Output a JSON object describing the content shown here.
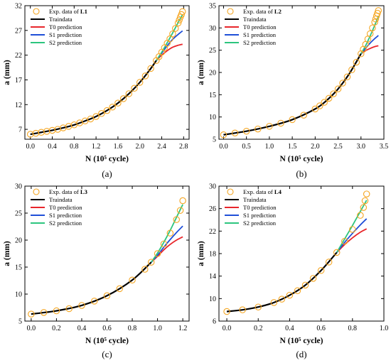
{
  "chart_data": [
    {
      "type": "line",
      "caption": "(a)",
      "xlabel": "N (10⁵ cycle)",
      "ylabel": "a (mm)",
      "xlim": [
        -0.1,
        2.9
      ],
      "ylim": [
        5,
        32
      ],
      "xticks": [
        0.0,
        0.4,
        0.8,
        1.2,
        1.6,
        2.0,
        2.4,
        2.8
      ],
      "xtick_labels": [
        "0.0",
        "0.4",
        "0.8",
        "1.2",
        "1.6",
        "2.0",
        "2.4",
        "2.8"
      ],
      "yticks": [
        7,
        12,
        17,
        22,
        27,
        32
      ],
      "ytick_labels": [
        "7",
        "12",
        "17",
        "22",
        "27",
        "32"
      ],
      "legend": {
        "position": "top-left",
        "entries": [
          {
            "label": "Exp. data of ",
            "label_bold": "L1",
            "kind": "marker",
            "color": "#F5A623"
          },
          {
            "label": "Traindata",
            "kind": "line",
            "color": "#000000"
          },
          {
            "label": "T0 prediction",
            "kind": "line",
            "color": "#E8262B"
          },
          {
            "label": "S1 prediction",
            "kind": "line",
            "color": "#1F4FD8"
          },
          {
            "label": "S2 prediction",
            "kind": "line",
            "color": "#2CC57E"
          }
        ]
      },
      "exp_data": {
        "x": [
          0.0,
          0.1,
          0.2,
          0.3,
          0.4,
          0.5,
          0.6,
          0.7,
          0.8,
          0.9,
          1.0,
          1.1,
          1.2,
          1.3,
          1.4,
          1.5,
          1.6,
          1.7,
          1.8,
          1.9,
          2.0,
          2.1,
          2.2,
          2.3,
          2.35,
          2.4,
          2.45,
          2.5,
          2.55,
          2.6,
          2.65,
          2.7,
          2.72,
          2.74,
          2.76,
          2.78
        ],
        "y": [
          6.0,
          6.2,
          6.4,
          6.6,
          6.8,
          7.0,
          7.3,
          7.6,
          7.9,
          8.3,
          8.7,
          9.1,
          9.6,
          10.2,
          10.8,
          11.5,
          12.3,
          13.2,
          14.2,
          15.3,
          16.5,
          17.8,
          19.3,
          20.9,
          21.7,
          22.6,
          23.5,
          24.4,
          25.3,
          26.3,
          27.4,
          28.5,
          29.1,
          29.7,
          30.2,
          30.8
        ]
      },
      "train_data": {
        "x": [
          0.0,
          0.2,
          0.4,
          0.6,
          0.8,
          1.0,
          1.2,
          1.4,
          1.6,
          1.8,
          2.0,
          2.2,
          2.3
        ],
        "y": [
          6.0,
          6.4,
          6.8,
          7.3,
          7.9,
          8.7,
          9.6,
          10.8,
          12.3,
          14.2,
          16.5,
          19.3,
          20.9
        ]
      },
      "predictions": {
        "x": [
          2.3,
          2.4,
          2.5,
          2.6,
          2.7,
          2.78
        ],
        "T0": [
          20.9,
          22.0,
          22.9,
          23.6,
          24.0,
          24.2
        ],
        "S1": [
          20.9,
          22.4,
          23.9,
          25.2,
          26.2,
          26.9
        ],
        "S2": [
          20.9,
          22.6,
          24.5,
          26.5,
          28.6,
          30.2
        ]
      }
    },
    {
      "type": "line",
      "caption": "(b)",
      "xlabel": "N (10⁵ cycle)",
      "ylabel": "a (mm)",
      "xlim": [
        -0.1,
        3.5
      ],
      "ylim": [
        5,
        35
      ],
      "xticks": [
        0.0,
        0.5,
        1.0,
        1.5,
        2.0,
        2.5,
        3.0,
        3.5
      ],
      "xtick_labels": [
        "0.0",
        "0.5",
        "1.0",
        "1.5",
        "2.0",
        "2.5",
        "3.0",
        "3.5"
      ],
      "yticks": [
        5,
        10,
        15,
        20,
        25,
        30,
        35
      ],
      "ytick_labels": [
        "5",
        "10",
        "15",
        "20",
        "25",
        "30",
        "35"
      ],
      "legend": {
        "position": "top-left",
        "entries": [
          {
            "label": "Exp. data of ",
            "label_bold": "L2",
            "kind": "marker",
            "color": "#F5A623"
          },
          {
            "label": "Traindata",
            "kind": "line",
            "color": "#000000"
          },
          {
            "label": "T0 prediction",
            "kind": "line",
            "color": "#E8262B"
          },
          {
            "label": "S1 prediction",
            "kind": "line",
            "color": "#1F4FD8"
          },
          {
            "label": "S2 prediction",
            "kind": "line",
            "color": "#2CC57E"
          }
        ]
      },
      "exp_data": {
        "x": [
          0.0,
          0.25,
          0.5,
          0.75,
          1.0,
          1.25,
          1.5,
          1.75,
          2.0,
          2.1,
          2.2,
          2.3,
          2.4,
          2.5,
          2.6,
          2.7,
          2.8,
          2.9,
          3.0,
          3.05,
          3.1,
          3.15,
          3.2,
          3.25,
          3.3,
          3.32,
          3.34,
          3.36,
          3.38
        ],
        "y": [
          6.0,
          6.4,
          6.8,
          7.3,
          7.9,
          8.6,
          9.4,
          10.4,
          11.8,
          12.5,
          13.3,
          14.2,
          15.2,
          16.3,
          17.6,
          19.0,
          20.6,
          22.3,
          24.2,
          25.2,
          26.3,
          27.5,
          28.7,
          30.0,
          31.3,
          32.0,
          32.7,
          33.3,
          33.9
        ]
      },
      "train_data": {
        "x": [
          0.0,
          0.5,
          1.0,
          1.5,
          2.0,
          2.25,
          2.5,
          2.75,
          3.0
        ],
        "y": [
          6.0,
          6.8,
          7.9,
          9.4,
          11.8,
          13.7,
          16.3,
          19.8,
          24.2
        ]
      },
      "predictions": {
        "x": [
          3.0,
          3.1,
          3.2,
          3.3,
          3.38
        ],
        "T0": [
          24.2,
          24.9,
          25.4,
          25.8,
          26.0
        ],
        "S1": [
          24.2,
          25.4,
          26.6,
          27.6,
          28.3
        ],
        "S2": [
          24.2,
          26.0,
          28.2,
          30.6,
          32.6
        ]
      }
    },
    {
      "type": "line",
      "caption": "(c)",
      "xlabel": "N (10⁵ cycle)",
      "ylabel": "a (mm)",
      "xlim": [
        -0.05,
        1.25
      ],
      "ylim": [
        5,
        30
      ],
      "xticks": [
        0.0,
        0.2,
        0.4,
        0.6,
        0.8,
        1.0,
        1.2
      ],
      "xtick_labels": [
        "0.0",
        "0.2",
        "0.4",
        "0.6",
        "0.8",
        "1.0",
        "1.2"
      ],
      "yticks": [
        5,
        10,
        15,
        20,
        25,
        30
      ],
      "ytick_labels": [
        "5",
        "10",
        "15",
        "20",
        "25",
        "30"
      ],
      "legend": {
        "position": "top-left",
        "entries": [
          {
            "label": "Exp. data of ",
            "label_bold": "L3",
            "kind": "marker",
            "color": "#F5A623"
          },
          {
            "label": "Traindata",
            "kind": "line",
            "color": "#000000"
          },
          {
            "label": "T0 prediction",
            "kind": "line",
            "color": "#E8262B"
          },
          {
            "label": "S1 prediction",
            "kind": "line",
            "color": "#1F4FD8"
          },
          {
            "label": "S2 prediction",
            "kind": "line",
            "color": "#2CC57E"
          }
        ]
      },
      "exp_data": {
        "x": [
          0.0,
          0.1,
          0.2,
          0.3,
          0.4,
          0.5,
          0.6,
          0.7,
          0.8,
          0.9,
          0.95,
          1.0,
          1.05,
          1.1,
          1.15,
          1.18,
          1.2
        ],
        "y": [
          6.3,
          6.6,
          6.9,
          7.3,
          7.9,
          8.7,
          9.7,
          11.0,
          12.6,
          14.6,
          15.9,
          17.5,
          19.3,
          21.3,
          23.8,
          25.5,
          27.3
        ]
      },
      "train_data": {
        "x": [
          0.0,
          0.2,
          0.4,
          0.6,
          0.8,
          0.95
        ],
        "y": [
          6.3,
          6.9,
          7.9,
          9.7,
          12.6,
          15.9
        ]
      },
      "predictions": {
        "x": [
          0.95,
          1.0,
          1.05,
          1.1,
          1.15,
          1.2
        ],
        "T0": [
          15.9,
          17.0,
          18.2,
          19.2,
          20.0,
          20.6
        ],
        "S1": [
          15.9,
          17.2,
          18.7,
          20.1,
          21.4,
          22.6
        ],
        "S2": [
          15.9,
          17.6,
          19.6,
          21.8,
          24.2,
          26.6
        ]
      }
    },
    {
      "type": "line",
      "caption": "(d)",
      "xlabel": "N (10⁵ cycle)",
      "ylabel": "a (mm)",
      "xlim": [
        -0.05,
        1.0
      ],
      "ylim": [
        6,
        30
      ],
      "xticks": [
        0.0,
        0.2,
        0.4,
        0.6,
        0.8,
        1.0
      ],
      "xtick_labels": [
        "0.0",
        "0.2",
        "0.4",
        "0.6",
        "0.8",
        "1.0"
      ],
      "yticks": [
        6,
        10,
        14,
        18,
        22,
        26,
        30
      ],
      "ytick_labels": [
        "6",
        "10",
        "14",
        "18",
        "22",
        "26",
        "30"
      ],
      "legend": {
        "position": "top-left",
        "entries": [
          {
            "label": "Exp. data of ",
            "label_bold": "L4",
            "kind": "marker",
            "color": "#F5A623"
          },
          {
            "label": "Traindata",
            "kind": "line",
            "color": "#000000"
          },
          {
            "label": "T0 prediction",
            "kind": "line",
            "color": "#E8262B"
          },
          {
            "label": "S1 prediction",
            "kind": "line",
            "color": "#1F4FD8"
          },
          {
            "label": "S2 prediction",
            "kind": "line",
            "color": "#2CC57E"
          }
        ]
      },
      "exp_data": {
        "x": [
          0.0,
          0.1,
          0.2,
          0.3,
          0.35,
          0.4,
          0.45,
          0.5,
          0.55,
          0.6,
          0.65,
          0.7,
          0.75,
          0.8,
          0.85,
          0.87,
          0.88,
          0.89
        ],
        "y": [
          7.7,
          8.0,
          8.5,
          9.3,
          9.9,
          10.6,
          11.4,
          12.4,
          13.6,
          15.0,
          16.5,
          18.2,
          20.2,
          22.3,
          24.8,
          26.2,
          27.4,
          28.6
        ]
      },
      "train_data": {
        "x": [
          0.0,
          0.1,
          0.2,
          0.3,
          0.4,
          0.5,
          0.6,
          0.7
        ],
        "y": [
          7.7,
          8.0,
          8.5,
          9.3,
          10.6,
          12.4,
          15.0,
          18.2
        ]
      },
      "predictions": {
        "x": [
          0.7,
          0.75,
          0.8,
          0.85,
          0.89
        ],
        "T0": [
          18.2,
          19.6,
          20.8,
          21.8,
          22.4
        ],
        "S1": [
          18.2,
          20.0,
          21.6,
          23.1,
          24.2
        ],
        "S2": [
          18.2,
          20.6,
          23.0,
          25.5,
          27.5
        ]
      }
    }
  ]
}
